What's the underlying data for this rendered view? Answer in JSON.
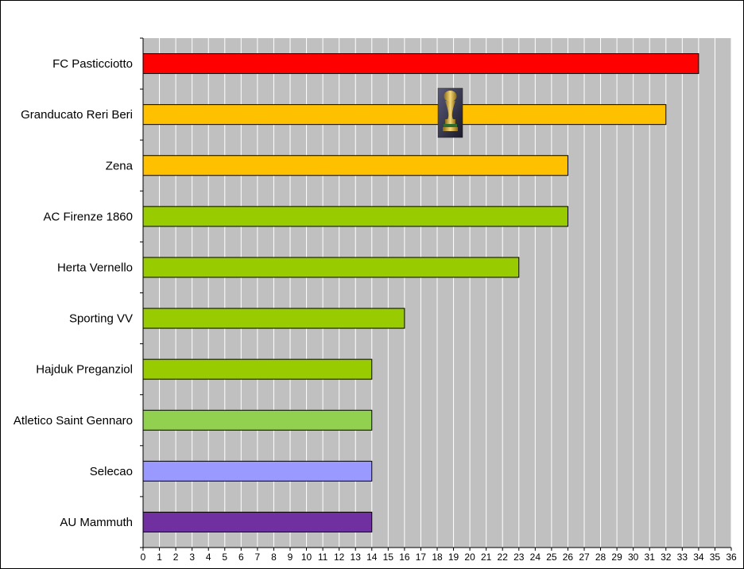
{
  "chart_data": {
    "type": "bar",
    "orientation": "horizontal",
    "categories": [
      "FC Pasticciotto",
      "Granducato Reri Beri",
      "Zena",
      "AC Firenze 1860",
      "Herta Vernello",
      "Sporting VV",
      "Hajduk Preganziol",
      "Atletico Saint Gennaro",
      "Selecao",
      "AU Mammuth"
    ],
    "values": [
      34,
      32,
      26,
      26,
      23,
      16,
      14,
      14,
      14,
      14
    ],
    "bar_colors": [
      "#ff0000",
      "#ffc000",
      "#ffc000",
      "#99cc00",
      "#99cc00",
      "#99cc00",
      "#99cc00",
      "#92d050",
      "#9999ff",
      "#7030a0"
    ],
    "xlim": [
      0,
      36
    ],
    "xticks": [
      "0",
      "1",
      "2",
      "3",
      "4",
      "5",
      "6",
      "7",
      "8",
      "9",
      "10",
      "11",
      "12",
      "13",
      "14",
      "15",
      "16",
      "17",
      "18",
      "19",
      "20",
      "21",
      "22",
      "23",
      "24",
      "25",
      "26",
      "27",
      "28",
      "29",
      "30",
      "31",
      "32",
      "33",
      "34",
      "35",
      "36"
    ],
    "grid": true,
    "plot_background": "#c0c0c0",
    "gridline_color": "#ffffff",
    "title": "",
    "xlabel": "",
    "ylabel": "",
    "trophy_icon": "trophy-icon"
  }
}
